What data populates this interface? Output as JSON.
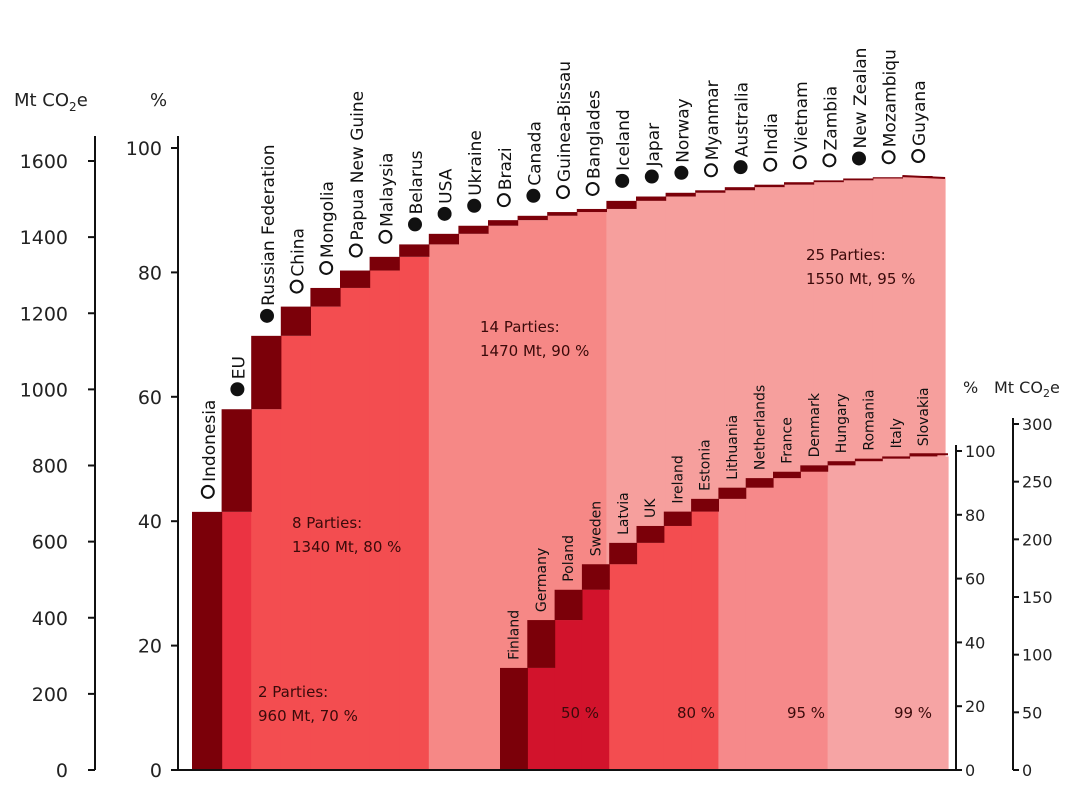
{
  "units": {
    "left_mt": [
      "Mt CO",
      "2",
      "e"
    ],
    "left_pct": "%",
    "right_pct": "%",
    "right_mt": [
      "Mt CO",
      "2",
      "e"
    ]
  },
  "chart_data": [
    {
      "type": "bar",
      "subtype": "cumulative step chart (Pareto)",
      "title": "",
      "axes": {
        "left_mt": {
          "ticks": [
            0,
            200,
            400,
            600,
            800,
            1000,
            1200,
            1400,
            1600
          ],
          "range": [
            0,
            1650
          ]
        },
        "left_pct": {
          "ticks": [
            0,
            20,
            40,
            60,
            80,
            100
          ],
          "range": [
            0,
            100
          ]
        }
      },
      "max_pct_value": 95.5,
      "categories": [
        "Indonesia",
        "EU",
        "Russian Federation",
        "China",
        "Mongolia",
        "Papua New Guine",
        "Malaysia",
        "Belarus",
        "USA",
        "Ukraine",
        "Brazi",
        "Canada",
        "Guinea-Bissau",
        "Banglades",
        "Iceland",
        "Japar",
        "Norway",
        "Myanmar",
        "Australia",
        "India",
        "Vietnam",
        "Zambia",
        "New Zealan",
        "Mozambiqu",
        "Guyana"
      ],
      "cumulative_pct": [
        41.5,
        58,
        69.8,
        74.5,
        77.5,
        80.3,
        82.5,
        84.5,
        86.2,
        87.5,
        88.4,
        89.1,
        89.7,
        90.2,
        91.5,
        92.2,
        92.8,
        93.2,
        93.7,
        94.1,
        94.5,
        94.8,
        95.1,
        95.3,
        95.5
      ],
      "markers": [
        "open",
        "filled",
        "filled",
        "open",
        "open",
        "open",
        "open",
        "filled",
        "filled",
        "filled",
        "open",
        "filled",
        "open",
        "open",
        "filled",
        "filled",
        "filled",
        "open",
        "filled",
        "open",
        "open",
        "open",
        "filled",
        "open",
        "open"
      ],
      "thresholds": [
        {
          "parties": 2,
          "text_1": "2 Parties:",
          "text_2": "960 Mt, 70 %"
        },
        {
          "parties": 8,
          "text_1": "8 Parties:",
          "text_2": "1340 Mt, 80 %"
        },
        {
          "parties": 14,
          "text_1": "14 Parties:",
          "text_2": "1470 Mt, 90 %"
        },
        {
          "parties": 25,
          "text_1": "25 Parties:",
          "text_2": "1550 Mt, 95 %"
        }
      ],
      "colors": {
        "dark": "#7b0009",
        "band1": "#eb3342",
        "band2": "#f34d50",
        "band3": "#f68886",
        "band4": "#f69f9d"
      }
    },
    {
      "type": "bar",
      "subtype": "cumulative step chart (Pareto)",
      "title": "",
      "axes": {
        "right_pct": {
          "ticks": [
            0,
            20,
            40,
            60,
            80,
            100
          ],
          "range": [
            0,
            100
          ]
        },
        "right_mt": {
          "ticks": [
            0,
            50,
            100,
            150,
            200,
            250,
            300
          ],
          "range": [
            0,
            300
          ]
        }
      },
      "max_pct_value": 99,
      "categories": [
        "Finland",
        "Germany",
        "Poland",
        "Sweden",
        "Latvia",
        "UK",
        "Ireland",
        "Estonia",
        "Lithuania",
        "Netherlands",
        "France",
        "Denmark",
        "Hungary",
        "Romania",
        "Italy",
        "Slovakia"
      ],
      "cumulative_pct": [
        32,
        47,
        56.5,
        64.5,
        71.2,
        76.5,
        81,
        85,
        88.5,
        91.5,
        93.5,
        95.5,
        96.8,
        97.6,
        98.3,
        99
      ],
      "bands": [
        {
          "label": "50 %",
          "upto": 4
        },
        {
          "label": "80 %",
          "upto": 8
        },
        {
          "label": "95 %",
          "upto": 12
        },
        {
          "label": "99 %",
          "upto": 16
        }
      ],
      "colors": {
        "dark": "#7b0009",
        "band1": "#d2132c",
        "band2": "#f34d50",
        "band3": "#f6898a",
        "band4": "#f6a4a4"
      }
    }
  ]
}
